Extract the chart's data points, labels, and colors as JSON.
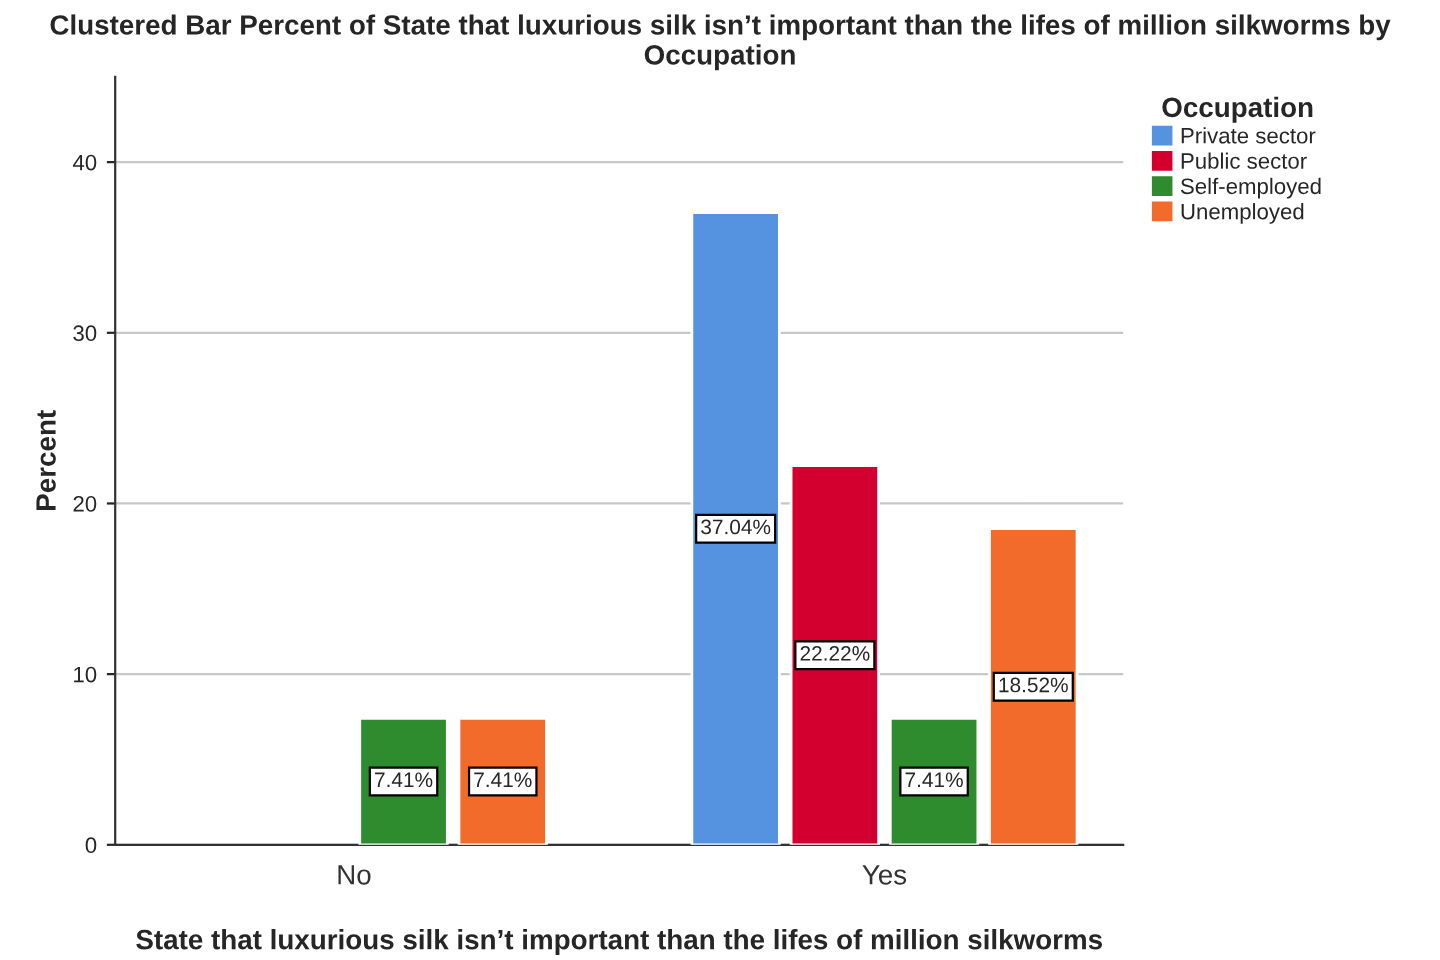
{
  "chart_data": {
    "type": "bar",
    "title": "Clustered Bar Percent of State that luxurious silk isn’t important than the lifes of million silkworms by Occupation",
    "xlabel": "State that luxurious silk isn’t important than the lifes of million silkworms",
    "ylabel": "Percent",
    "legend_title": "Occupation",
    "categories": [
      "No",
      "Yes"
    ],
    "series": [
      {
        "name": "Private sector",
        "color": "#5592e0",
        "values": [
          null,
          37.04
        ],
        "value_labels": [
          null,
          "37.04%"
        ]
      },
      {
        "name": "Public sector",
        "color": "#d3002f",
        "values": [
          null,
          22.22
        ],
        "value_labels": [
          null,
          "22.22%"
        ]
      },
      {
        "name": "Self-employed",
        "color": "#2e8b2e",
        "values": [
          7.41,
          7.41
        ],
        "value_labels": [
          "7.41%",
          "7.41%"
        ]
      },
      {
        "name": "Unemployed",
        "color": "#f26b2a",
        "values": [
          7.41,
          18.52
        ],
        "value_labels": [
          "7.41%",
          "18.52%"
        ]
      }
    ],
    "ylim": [
      0,
      45
    ],
    "yticks": [
      0,
      10,
      20,
      30,
      40
    ],
    "grid": "y",
    "legend": "top right"
  }
}
